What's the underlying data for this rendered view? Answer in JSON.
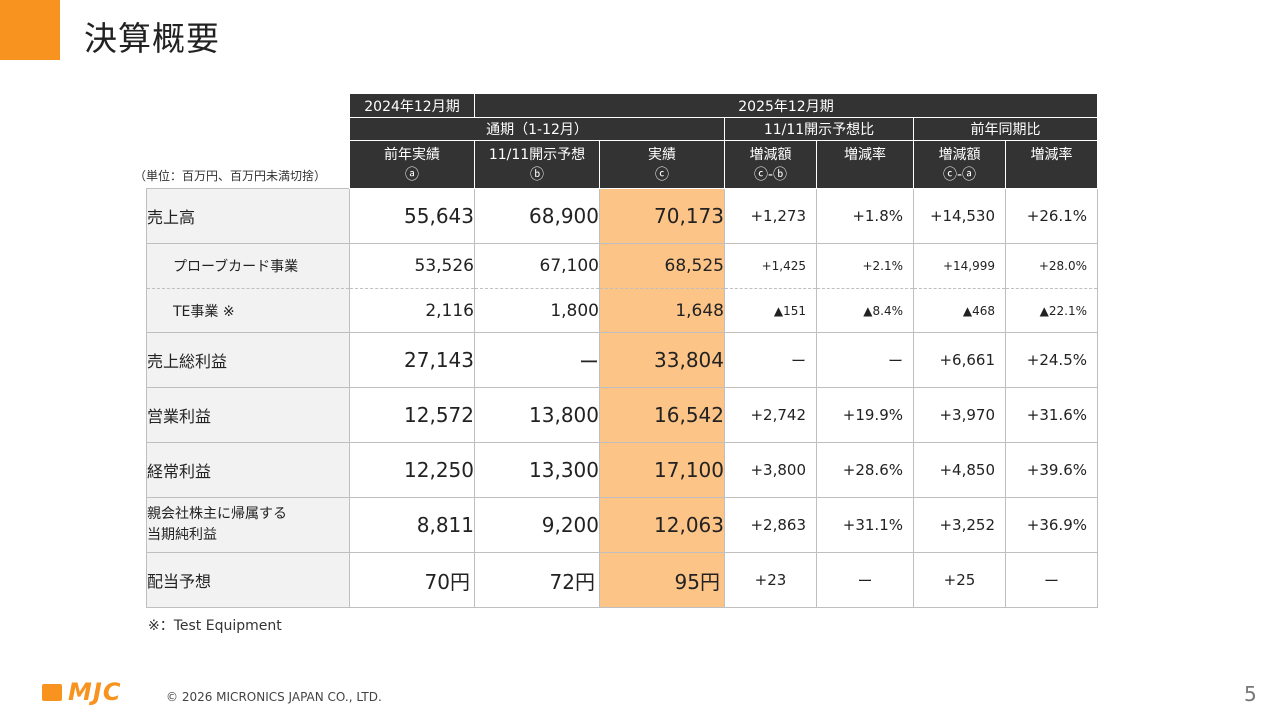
{
  "page": {
    "title": "決算概要",
    "unit_note": "（単位：百万円、百万円未満切捨）",
    "footnote": "※：Test Equipment",
    "copyright": "© 2026 MICRONICS JAPAN CO., LTD.",
    "page_number": "5",
    "logo_text": "MJC",
    "accent_color": "#f7931e"
  },
  "table": {
    "header": {
      "prev_period": "2024年12月期",
      "curr_period": "2025年12月期",
      "full_year": "通期（1-12月）",
      "vs_forecast": "11/11開示予想比",
      "vs_prev": "前年同期比",
      "cols": [
        {
          "label": "前年実績",
          "mark": "ⓐ"
        },
        {
          "label": "11/11開示予想",
          "mark": "ⓑ"
        },
        {
          "label": "実績",
          "mark": "ⓒ"
        },
        {
          "label": "増減額",
          "mark": "ⓒ-ⓑ"
        },
        {
          "label": "増減率",
          "mark": ""
        },
        {
          "label": "増減額",
          "mark": "ⓒ-ⓐ"
        },
        {
          "label": "増減率",
          "mark": ""
        }
      ]
    },
    "rows": [
      {
        "label": "売上高",
        "prev": "55,643",
        "forecast": "68,900",
        "actual": "70,173",
        "diff_fc": "+1,273",
        "rate_fc": "+1.8%",
        "diff_prev": "+14,530",
        "rate_prev": "+26.1%"
      },
      {
        "label": "プローブカード事業",
        "prev": "53,526",
        "forecast": "67,100",
        "actual": "68,525",
        "diff_fc": "+1,425",
        "rate_fc": "+2.1%",
        "diff_prev": "+14,999",
        "rate_prev": "+28.0%"
      },
      {
        "label": "TE事業 ※",
        "prev": "2,116",
        "forecast": "1,800",
        "actual": "1,648",
        "diff_fc": "▲151",
        "rate_fc": "▲8.4%",
        "diff_prev": "▲468",
        "rate_prev": "▲22.1%"
      },
      {
        "label": "売上総利益",
        "prev": "27,143",
        "forecast": "ー",
        "actual": "33,804",
        "diff_fc": "ー",
        "rate_fc": "ー",
        "diff_prev": "+6,661",
        "rate_prev": "+24.5%"
      },
      {
        "label": "営業利益",
        "prev": "12,572",
        "forecast": "13,800",
        "actual": "16,542",
        "diff_fc": "+2,742",
        "rate_fc": "+19.9%",
        "diff_prev": "+3,970",
        "rate_prev": "+31.6%"
      },
      {
        "label": "経常利益",
        "prev": "12,250",
        "forecast": "13,300",
        "actual": "17,100",
        "diff_fc": "+3,800",
        "rate_fc": "+28.6%",
        "diff_prev": "+4,850",
        "rate_prev": "+39.6%"
      },
      {
        "label_line1": "親会社株主に帰属する",
        "label_line2": "当期純利益",
        "prev": "8,811",
        "forecast": "9,200",
        "actual": "12,063",
        "diff_fc": "+2,863",
        "rate_fc": "+31.1%",
        "diff_prev": "+3,252",
        "rate_prev": "+36.9%"
      },
      {
        "label": "配当予想",
        "prev": "70円",
        "forecast": "72円",
        "actual": "95円",
        "diff_fc": "+23",
        "rate_fc": "ー",
        "diff_prev": "+25",
        "rate_prev": "ー"
      }
    ]
  }
}
